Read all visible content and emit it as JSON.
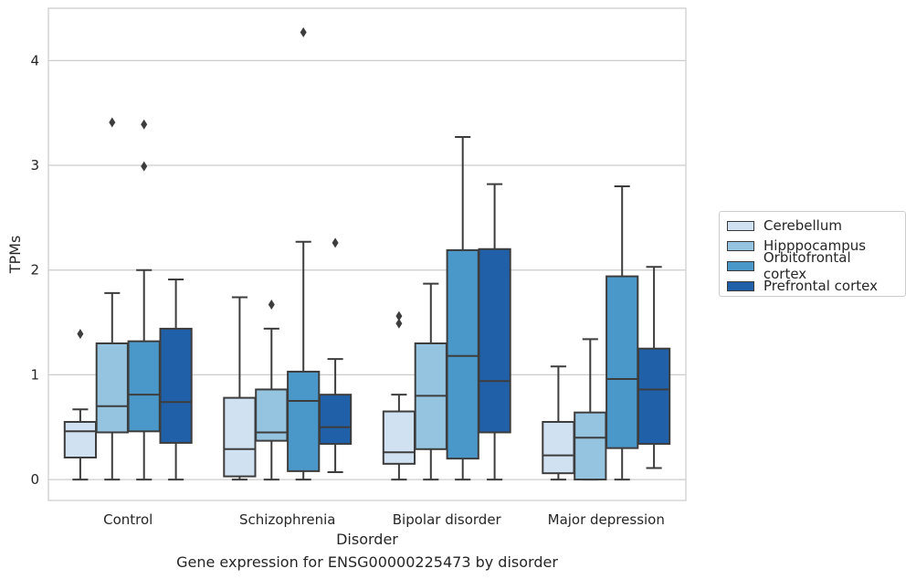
{
  "chart_data": {
    "type": "box",
    "title": "",
    "xlabel": "Disorder",
    "ylabel": "TPMs",
    "ylim": [
      -0.2,
      4.5
    ],
    "yticks": [
      0,
      1,
      2,
      3,
      4
    ],
    "grid": "horizontal",
    "legend_position": "right",
    "categories": [
      "Control",
      "Schizophrenia",
      "Bipolar disorder",
      "Major depression"
    ],
    "series": [
      {
        "name": "Cerebellum",
        "color": "#d0e1f2",
        "boxes": [
          {
            "whislo": 0.0,
            "q1": 0.21,
            "median": 0.46,
            "q3": 0.55,
            "whishi": 0.67,
            "fliers": [
              1.39
            ]
          },
          {
            "whislo": 0.0,
            "q1": 0.03,
            "median": 0.29,
            "q3": 0.78,
            "whishi": 1.74,
            "fliers": []
          },
          {
            "whislo": 0.0,
            "q1": 0.15,
            "median": 0.26,
            "q3": 0.65,
            "whishi": 0.81,
            "fliers": [
              1.49,
              1.56
            ]
          },
          {
            "whislo": 0.0,
            "q1": 0.06,
            "median": 0.23,
            "q3": 0.55,
            "whishi": 1.08,
            "fliers": []
          }
        ]
      },
      {
        "name": "Hipppocampus",
        "color": "#94c4df",
        "boxes": [
          {
            "whislo": 0.0,
            "q1": 0.45,
            "median": 0.7,
            "q3": 1.3,
            "whishi": 1.78,
            "fliers": [
              3.41
            ]
          },
          {
            "whislo": 0.0,
            "q1": 0.37,
            "median": 0.45,
            "q3": 0.86,
            "whishi": 1.44,
            "fliers": [
              1.67
            ]
          },
          {
            "whislo": 0.0,
            "q1": 0.29,
            "median": 0.8,
            "q3": 1.3,
            "whishi": 1.87,
            "fliers": []
          },
          {
            "whislo": 0.0,
            "q1": 0.0,
            "median": 0.4,
            "q3": 0.64,
            "whishi": 1.34,
            "fliers": []
          }
        ]
      },
      {
        "name": "Orbitofrontal cortex",
        "color": "#4a98c9",
        "boxes": [
          {
            "whislo": 0.0,
            "q1": 0.46,
            "median": 0.81,
            "q3": 1.32,
            "whishi": 2.0,
            "fliers": [
              2.99,
              3.39
            ]
          },
          {
            "whislo": 0.0,
            "q1": 0.08,
            "median": 0.75,
            "q3": 1.03,
            "whishi": 2.27,
            "fliers": [
              4.27
            ]
          },
          {
            "whislo": 0.0,
            "q1": 0.2,
            "median": 1.18,
            "q3": 2.19,
            "whishi": 3.27,
            "fliers": []
          },
          {
            "whislo": 0.0,
            "q1": 0.3,
            "median": 0.96,
            "q3": 1.94,
            "whishi": 2.8,
            "fliers": []
          }
        ]
      },
      {
        "name": "Prefrontal cortex",
        "color": "#2060a8",
        "boxes": [
          {
            "whislo": 0.0,
            "q1": 0.35,
            "median": 0.74,
            "q3": 1.44,
            "whishi": 1.91,
            "fliers": []
          },
          {
            "whislo": 0.07,
            "q1": 0.34,
            "median": 0.5,
            "q3": 0.81,
            "whishi": 1.15,
            "fliers": [
              2.26
            ]
          },
          {
            "whislo": 0.0,
            "q1": 0.45,
            "median": 0.94,
            "q3": 2.2,
            "whishi": 2.82,
            "fliers": []
          },
          {
            "whislo": 0.11,
            "q1": 0.34,
            "median": 0.86,
            "q3": 1.25,
            "whishi": 2.03,
            "fliers": []
          }
        ]
      }
    ]
  },
  "caption": "Gene expression for ENSG00000225473 by disorder"
}
